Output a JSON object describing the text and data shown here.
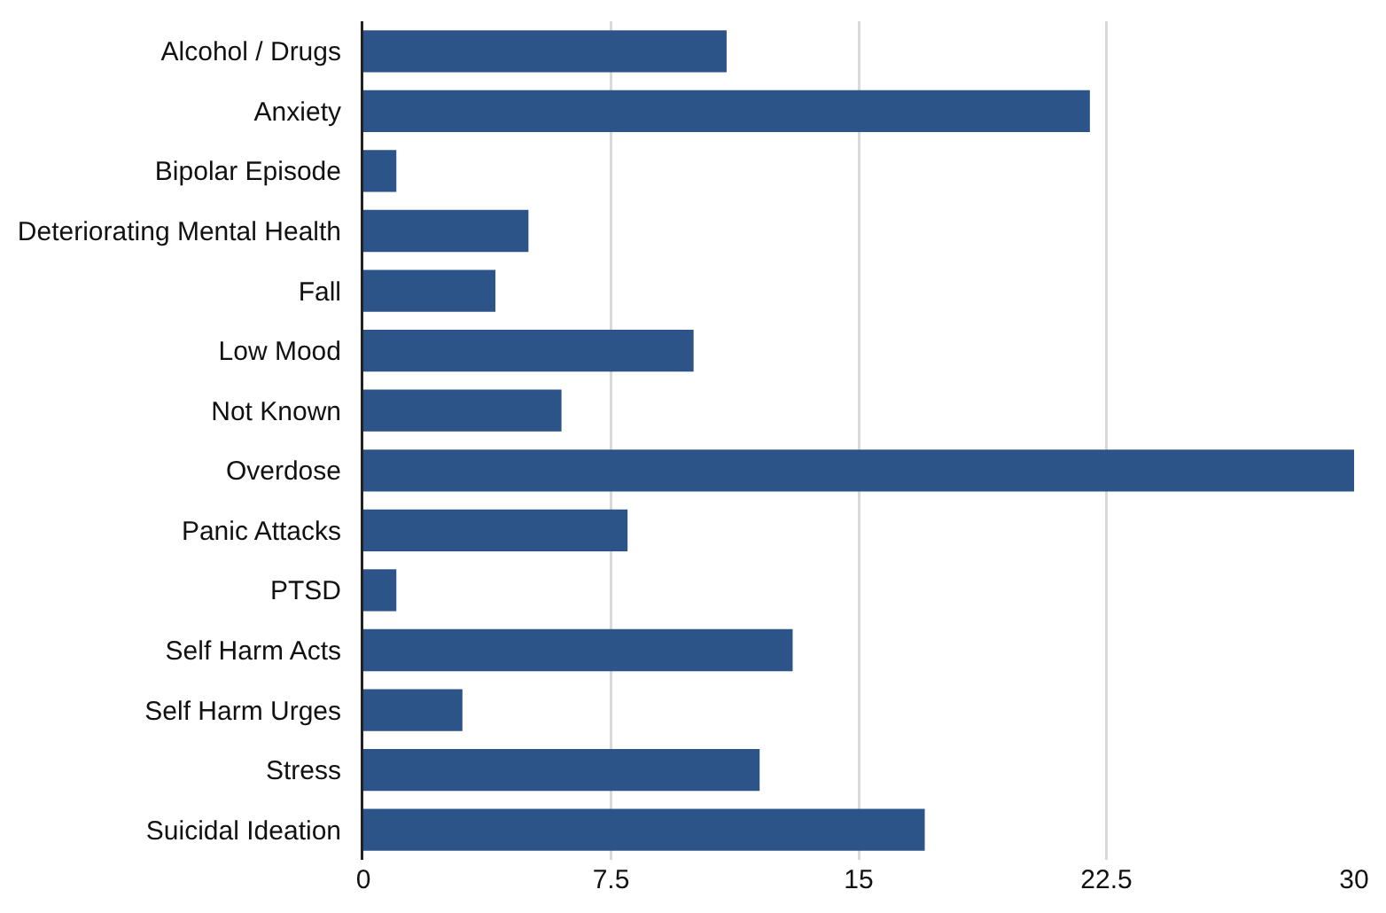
{
  "chart_data": {
    "type": "bar",
    "orientation": "horizontal",
    "categories": [
      "Alcohol / Drugs",
      "Anxiety",
      "Bipolar Episode",
      "Deteriorating Mental Health",
      "Fall",
      "Low Mood",
      "Not Known",
      "Overdose",
      "Panic Attacks",
      "PTSD",
      "Self Harm Acts",
      "Self Harm Urges",
      "Stress",
      "Suicidal Ideation"
    ],
    "values": [
      11,
      22,
      1,
      5,
      4,
      10,
      6,
      30,
      8,
      1,
      13,
      3,
      12,
      17
    ],
    "color": "#2d5489",
    "xlim": [
      0,
      30
    ],
    "xticks": [
      0,
      7.5,
      15,
      22.5,
      30
    ],
    "grid": "x"
  }
}
